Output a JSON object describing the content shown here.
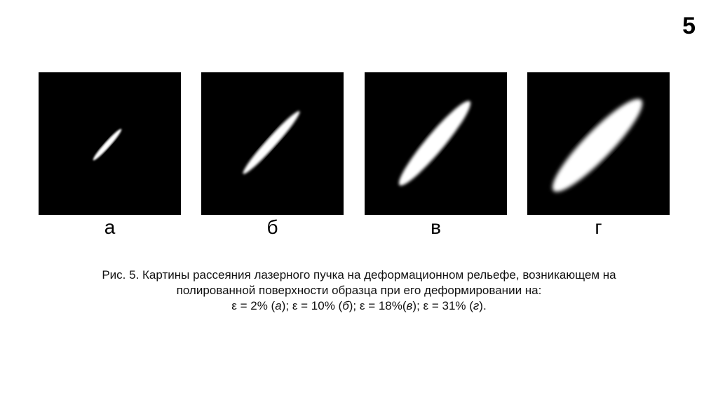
{
  "slide_number": "5",
  "panels": [
    {
      "label": "а",
      "strain_percent": 2
    },
    {
      "label": "б",
      "strain_percent": 10
    },
    {
      "label": "в",
      "strain_percent": 18
    },
    {
      "label": "г",
      "strain_percent": 31
    }
  ],
  "caption": {
    "line1": "Рис. 5. Картины рассеяния лазерного пучка на деформационном рельефе, возникающем на",
    "line2": "полированной поверхности образца при его деформировании на:",
    "eps": "ε",
    "p1": " = 2% (",
    "l1": "а",
    "s1": "); ",
    "p2": " = 10% (",
    "l2": "б",
    "s2": "); ",
    "p3": " = 18%(",
    "l3": "в",
    "s3": "); ",
    "p4": " = 31% (",
    "l4": "г",
    "s4": ")."
  }
}
